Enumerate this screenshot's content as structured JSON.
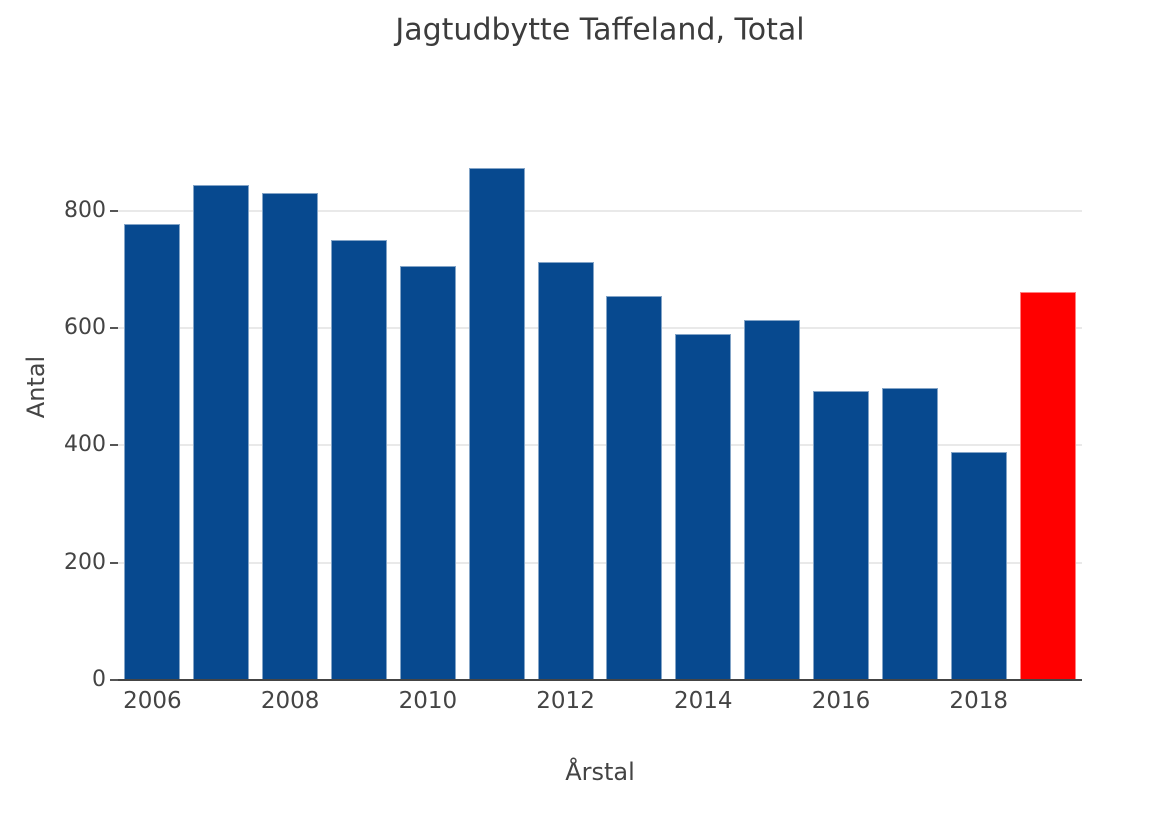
{
  "chart_data": {
    "type": "bar",
    "title": "Jagtudbytte Taffeland, Total",
    "xlabel": "Årstal",
    "ylabel": "Antal",
    "categories": [
      2006,
      2007,
      2008,
      2009,
      2010,
      2011,
      2012,
      2013,
      2014,
      2015,
      2016,
      2017,
      2018,
      2019
    ],
    "values": [
      778,
      843,
      830,
      750,
      705,
      872,
      713,
      654,
      589,
      613,
      492,
      498,
      389,
      661
    ],
    "highlight_year": 2019,
    "x_tick_labels": [
      "2006",
      "2008",
      "2010",
      "2012",
      "2014",
      "2016",
      "2018"
    ],
    "y_ticks": [
      0,
      200,
      400,
      600,
      800
    ],
    "ylim": [
      0,
      997
    ],
    "grid": "horizontal",
    "legend": "none",
    "colors": {
      "bar": "#07498F",
      "highlight": "#FF0000",
      "grid": "#E9E9E9",
      "axis_line": "#444444",
      "text": "#444444"
    }
  }
}
